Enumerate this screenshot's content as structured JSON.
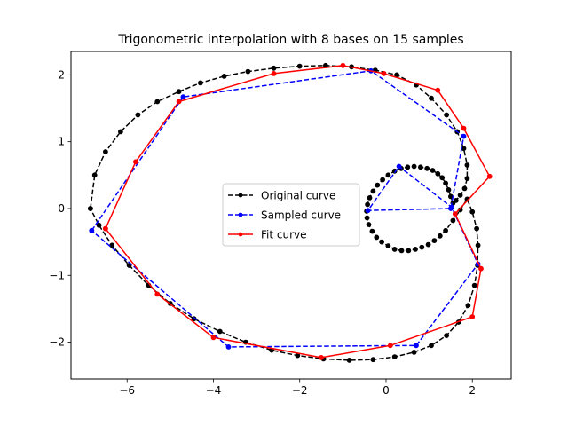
{
  "chart_data": {
    "type": "line",
    "title": "Trigonometric interpolation with 8 bases on 15 samples",
    "xlabel": "",
    "ylabel": "",
    "xlim": [
      -7.3,
      2.9
    ],
    "ylim": [
      -2.55,
      2.35
    ],
    "xticks": [
      -6,
      -4,
      -2,
      0,
      2
    ],
    "yticks": [
      -2,
      -1,
      0,
      1,
      2
    ],
    "xtick_labels": [
      "−6",
      "−4",
      "−2",
      "0",
      "2"
    ],
    "ytick_labels": [
      "−2",
      "−1",
      "0",
      "1",
      "2"
    ],
    "grid": false,
    "legend_position": "center",
    "series": [
      {
        "name": "Original curve",
        "color": "#000000",
        "linestyle": "dashed",
        "marker": "circle",
        "x": [
          -6.85,
          -6.75,
          -6.5,
          -6.15,
          -5.75,
          -5.3,
          -4.8,
          -4.3,
          -3.75,
          -3.2,
          -2.6,
          -2.0,
          -1.4,
          -0.8,
          -0.25,
          0.25,
          0.7,
          1.05,
          1.4,
          1.65,
          1.8,
          1.88,
          1.88,
          1.82,
          1.72,
          1.62,
          1.55,
          1.5,
          1.45,
          1.38,
          1.3,
          1.2,
          1.08,
          0.95,
          0.8,
          0.65,
          0.5,
          0.35,
          0.2,
          0.05,
          -0.08,
          -0.2,
          -0.3,
          -0.38,
          -0.43,
          -0.45,
          -0.44,
          -0.4,
          -0.32,
          -0.22,
          -0.1,
          0.05,
          0.2,
          0.36,
          0.52,
          0.68,
          0.83,
          0.98,
          1.12,
          1.25,
          1.38,
          1.55,
          1.72,
          1.88,
          2.0,
          2.1,
          2.13,
          2.12,
          2.05,
          1.9,
          1.68,
          1.4,
          1.05,
          0.65,
          0.2,
          -0.3,
          -0.85,
          -1.45,
          -2.05,
          -2.65,
          -3.25,
          -3.85,
          -4.45,
          -5.0,
          -5.5,
          -5.95,
          -6.35,
          -6.65,
          -6.85
        ],
        "y": [
          0.0,
          0.5,
          0.85,
          1.15,
          1.4,
          1.6,
          1.75,
          1.88,
          1.98,
          2.05,
          2.1,
          2.13,
          2.14,
          2.12,
          2.07,
          2.0,
          1.85,
          1.65,
          1.4,
          1.15,
          0.9,
          0.65,
          0.45,
          0.3,
          0.2,
          0.12,
          0.08,
          0.18,
          0.28,
          0.38,
          0.46,
          0.52,
          0.57,
          0.6,
          0.62,
          0.63,
          0.62,
          0.6,
          0.56,
          0.5,
          0.43,
          0.35,
          0.26,
          0.16,
          0.06,
          -0.04,
          -0.14,
          -0.24,
          -0.34,
          -0.43,
          -0.5,
          -0.56,
          -0.61,
          -0.63,
          -0.63,
          -0.61,
          -0.58,
          -0.54,
          -0.48,
          -0.41,
          -0.33,
          -0.18,
          -0.02,
          0.14,
          -0.05,
          -0.3,
          -0.55,
          -0.85,
          -1.15,
          -1.45,
          -1.7,
          -1.9,
          -2.05,
          -2.15,
          -2.22,
          -2.26,
          -2.27,
          -2.25,
          -2.2,
          -2.12,
          -2.0,
          -1.84,
          -1.65,
          -1.42,
          -1.15,
          -0.85,
          -0.55,
          -0.25,
          0.0
        ]
      },
      {
        "name": "Sampled curve",
        "color": "#0000ff",
        "linestyle": "dashed",
        "marker": "circle",
        "x": [
          -6.82,
          -4.7,
          -0.35,
          1.8,
          1.5,
          -0.42,
          0.3,
          1.52,
          2.13,
          0.7,
          -3.65,
          -6.82
        ],
        "y": [
          -0.33,
          1.67,
          2.06,
          1.08,
          0.0,
          -0.03,
          0.63,
          0.02,
          -0.83,
          -2.05,
          -2.07,
          -0.33
        ]
      },
      {
        "name": "Fit curve",
        "color": "#ff0000",
        "linestyle": "solid",
        "marker": "circle",
        "x": [
          -6.5,
          -5.3,
          -4.0,
          -1.5,
          0.1,
          2.0,
          2.2,
          1.6,
          2.4,
          1.8,
          1.2,
          -0.05,
          -1.0,
          -2.6,
          -4.8,
          -5.8,
          -6.5
        ],
        "y": [
          -0.3,
          -1.28,
          -1.93,
          -2.23,
          -2.05,
          -1.62,
          -0.9,
          -0.08,
          0.48,
          1.2,
          1.77,
          2.02,
          2.14,
          2.02,
          1.6,
          0.7,
          -0.3
        ]
      }
    ]
  }
}
